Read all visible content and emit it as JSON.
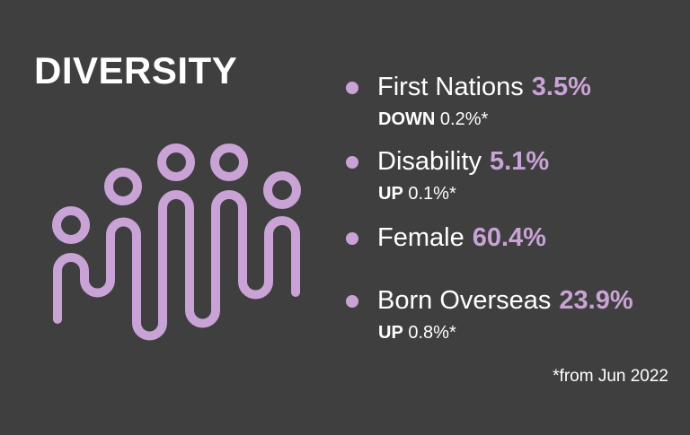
{
  "title": "DIVERSITY",
  "icon": "people-group-icon",
  "accent_color": "#c9a3d6",
  "background_color": "#3f3f3f",
  "stats": [
    {
      "label": "First Nations",
      "value": "3.5%",
      "change_dir": "DOWN",
      "change_value": "0.2%*"
    },
    {
      "label": "Disability",
      "value": "5.1%",
      "change_dir": "UP",
      "change_value": "0.1%*"
    },
    {
      "label": "Female",
      "value": "60.4%"
    },
    {
      "label": "Born Overseas",
      "value": "23.9%",
      "change_dir": "UP",
      "change_value": "0.8%*"
    }
  ],
  "footnote": "*from Jun 2022"
}
